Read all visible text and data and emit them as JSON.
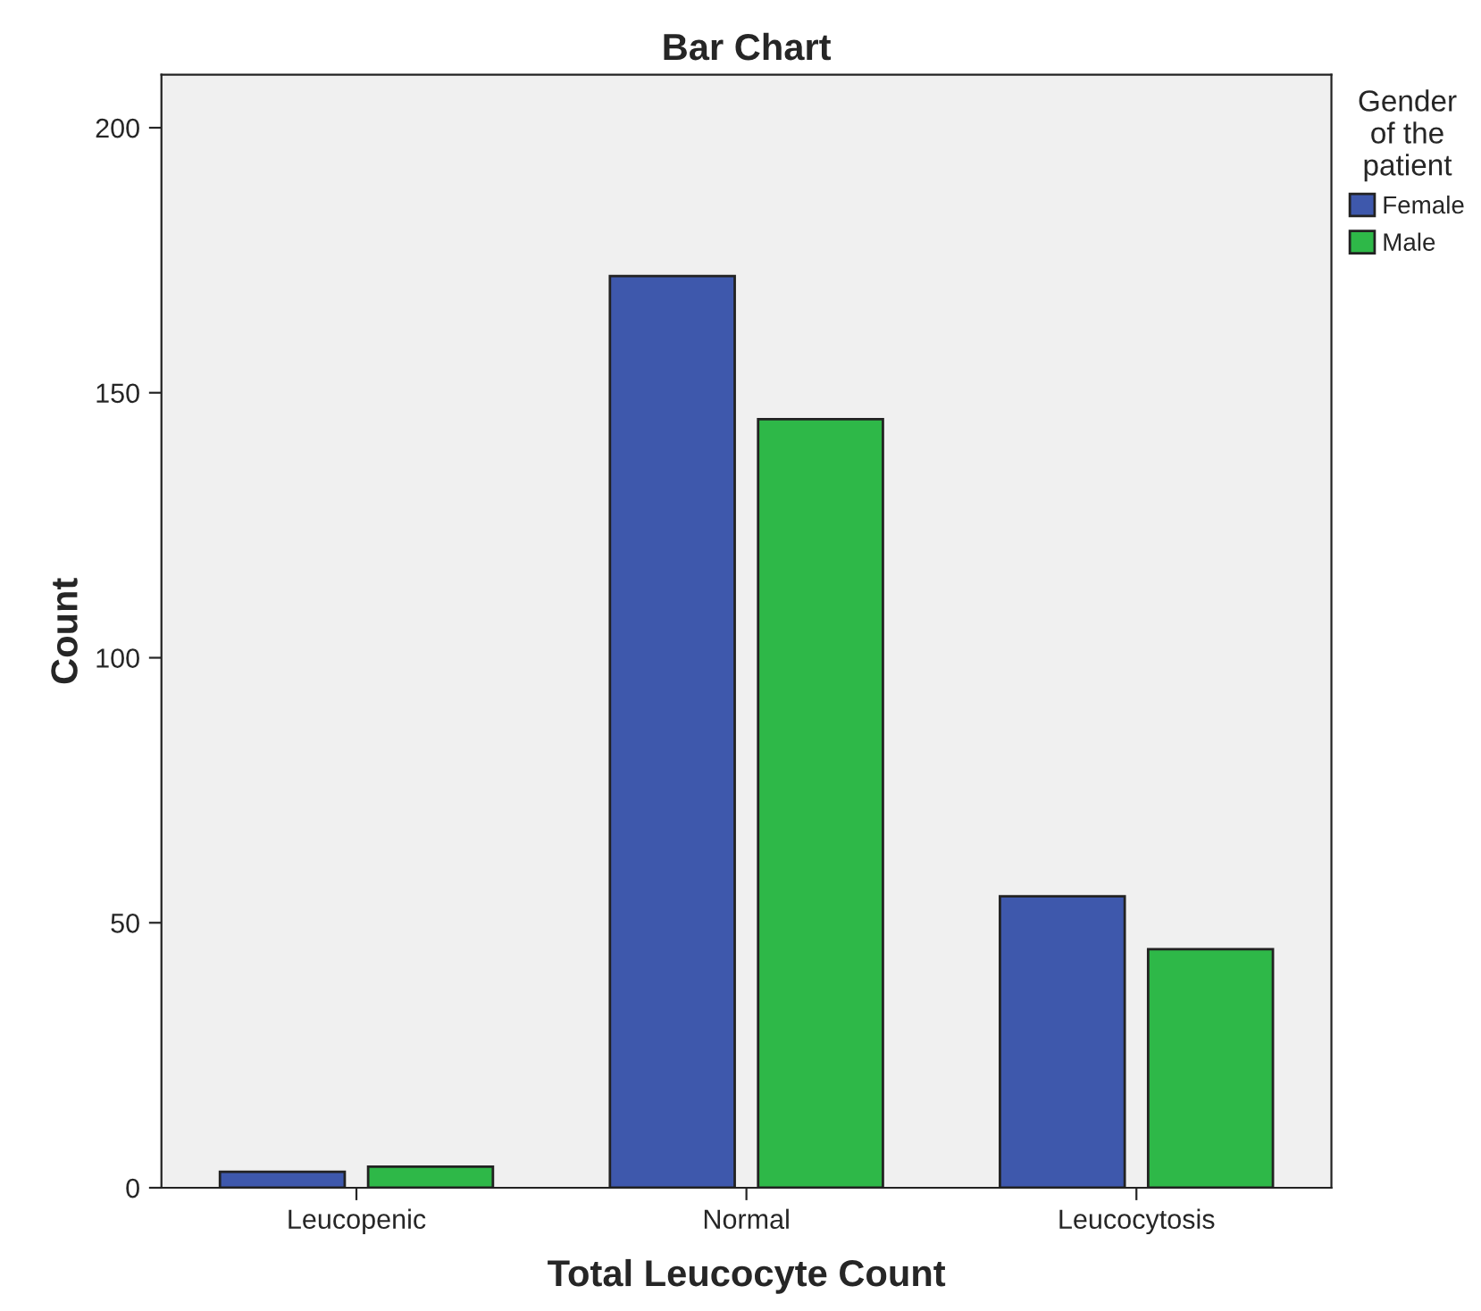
{
  "chart_data": {
    "type": "bar",
    "title": "Bar Chart",
    "xlabel": "Total Leucocyte Count",
    "ylabel": "Count",
    "legend_title": "Gender\nof the\npatient",
    "categories": [
      "Leucopenic",
      "Normal",
      "Leucocytosis"
    ],
    "series": [
      {
        "name": "Female",
        "color": "#3e58ac",
        "values": [
          3,
          172,
          55
        ]
      },
      {
        "name": "Male",
        "color": "#2eb848",
        "values": [
          4,
          145,
          45
        ]
      }
    ],
    "ylim": [
      0,
      210
    ],
    "yticks": [
      0,
      50,
      100,
      150,
      200
    ],
    "grid": false,
    "legend": "top right"
  }
}
